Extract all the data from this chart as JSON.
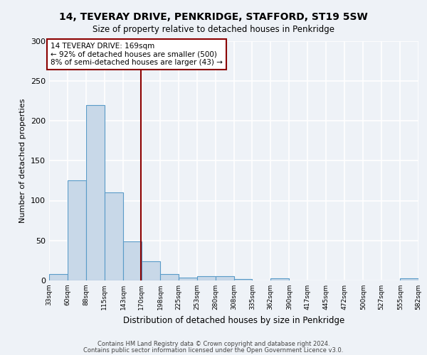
{
  "title1": "14, TEVERAY DRIVE, PENKRIDGE, STAFFORD, ST19 5SW",
  "title2": "Size of property relative to detached houses in Penkridge",
  "xlabel": "Distribution of detached houses by size in Penkridge",
  "ylabel": "Number of detached properties",
  "footer1": "Contains HM Land Registry data © Crown copyright and database right 2024.",
  "footer2": "Contains public sector information licensed under the Open Government Licence v3.0.",
  "bar_edges": [
    33,
    60,
    88,
    115,
    143,
    170,
    198,
    225,
    253,
    280,
    308,
    335,
    362,
    390,
    417,
    445,
    472,
    500,
    527,
    555,
    582
  ],
  "bar_heights": [
    8,
    125,
    220,
    110,
    49,
    24,
    8,
    4,
    5,
    5,
    2,
    0,
    3,
    0,
    0,
    0,
    0,
    0,
    0,
    3
  ],
  "bar_color": "#c8d8e8",
  "bar_edgecolor": "#5a9bc8",
  "vline_x": 169,
  "vline_color": "#8b0000",
  "annotation_text": "14 TEVERAY DRIVE: 169sqm\n← 92% of detached houses are smaller (500)\n8% of semi-detached houses are larger (43) →",
  "annotation_box_color": "#8b0000",
  "ylim": [
    0,
    300
  ],
  "yticks": [
    0,
    50,
    100,
    150,
    200,
    250,
    300
  ],
  "xlim_left": 33,
  "xlim_right": 582,
  "background_color": "#eef2f7",
  "grid_color": "#ffffff",
  "tick_labels": [
    "33sqm",
    "60sqm",
    "88sqm",
    "115sqm",
    "143sqm",
    "170sqm",
    "198sqm",
    "225sqm",
    "253sqm",
    "280sqm",
    "308sqm",
    "335sqm",
    "362sqm",
    "390sqm",
    "417sqm",
    "445sqm",
    "472sqm",
    "500sqm",
    "527sqm",
    "555sqm",
    "582sqm"
  ]
}
